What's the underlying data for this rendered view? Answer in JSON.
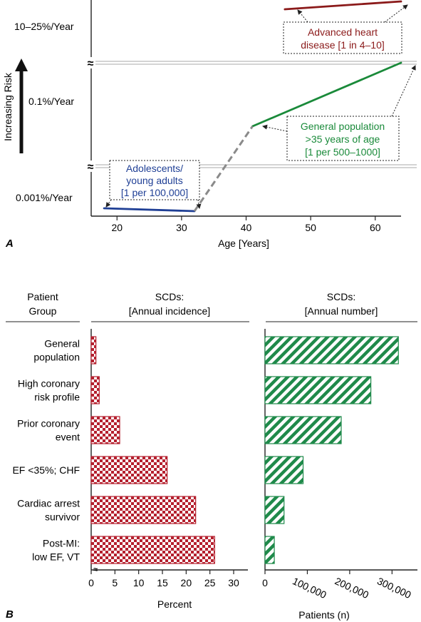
{
  "panel_a": {
    "letter": "A",
    "ylabel": "Increasing Risk",
    "xlabel": "Age [Years]",
    "band_labels": [
      "10–25%/Year",
      "0.1%/Year",
      "0.001%/Year"
    ],
    "callouts": {
      "advanced": [
        "Advanced heart",
        "disease [1 in 4–10]"
      ],
      "general": [
        "General population",
        ">35 years of age",
        "[1 per 500–1000]"
      ],
      "adolescent": [
        "Adolescents/",
        "young adults",
        "[1 per 100,000]"
      ]
    },
    "break_symbol": "≈",
    "colors": {
      "advanced": "#8b1a1a",
      "general": "#1a8a3a",
      "adolescent": "#1f3f95",
      "bridge": "#8a8a8a"
    }
  },
  "panel_b": {
    "letter": "B",
    "group_header": [
      "Patient",
      "Group"
    ],
    "left_header": [
      "SCDs:",
      "[Annual incidence]"
    ],
    "right_header": [
      "SCDs:",
      "[Annual number]"
    ],
    "left_xlabel": "Percent",
    "right_xlabel": "Patients (n)",
    "break_symbol": "≈",
    "groups": [
      [
        "General",
        "population"
      ],
      [
        "High coronary",
        "risk profile"
      ],
      [
        "Prior coronary",
        "event"
      ],
      [
        "EF <35%; CHF"
      ],
      [
        "Cardiac arrest",
        "survivor"
      ],
      [
        "Post-MI:",
        "low EF, VT"
      ]
    ],
    "colors": {
      "incidence": "#b5202e",
      "number": "#1f8a4a"
    }
  },
  "chart_data": [
    {
      "type": "line",
      "xlabel": "Age [Years]",
      "ylabel": "Increasing Risk",
      "xlim": [
        16,
        64
      ],
      "x_ticks": [
        "20",
        "30",
        "40",
        "50",
        "60"
      ],
      "y_bands": [
        "0.001%/Year",
        "0.1%/Year",
        "10–25%/Year"
      ],
      "series": [
        {
          "name": "Adolescents/young adults [1 per 100,000]",
          "x": [
            18,
            32
          ],
          "y": [
            "0.001%/Year",
            "0.001%/Year"
          ]
        },
        {
          "name": "General population >35 years of age [1 per 500–1000]",
          "x": [
            41,
            64
          ],
          "y": [
            "0.1%/Year (low)",
            "0.1%/Year (high)"
          ]
        },
        {
          "name": "Advanced heart disease [1 in 4–10]",
          "x": [
            46,
            64
          ],
          "y": [
            "10–25%/Year",
            "10–25%/Year"
          ]
        }
      ]
    },
    {
      "type": "bar",
      "orientation": "horizontal",
      "title": "SCDs: [Annual incidence]",
      "xlabel": "Percent",
      "xlim": [
        0,
        33
      ],
      "x_ticks": [
        "0",
        "5",
        "10",
        "15",
        "20",
        "25",
        "30"
      ],
      "categories": [
        "General population",
        "High coronary risk profile",
        "Prior coronary event",
        "EF <35%; CHF",
        "Cardiac arrest survivor",
        "Post-MI: low EF, VT"
      ],
      "values": [
        1,
        1.7,
        6,
        16,
        22,
        26
      ]
    },
    {
      "type": "bar",
      "orientation": "horizontal",
      "title": "SCDs: [Annual number]",
      "xlabel": "Patients (n)",
      "xlim": [
        0,
        360000
      ],
      "x_ticks": [
        "0",
        "100,000",
        "200,000",
        "300,000"
      ],
      "categories": [
        "General population",
        "High coronary risk profile",
        "Prior coronary event",
        "EF <35%; CHF",
        "Cardiac arrest survivor",
        "Post-MI: low EF, VT"
      ],
      "values": [
        315000,
        250000,
        180000,
        90000,
        45000,
        22000
      ]
    }
  ]
}
